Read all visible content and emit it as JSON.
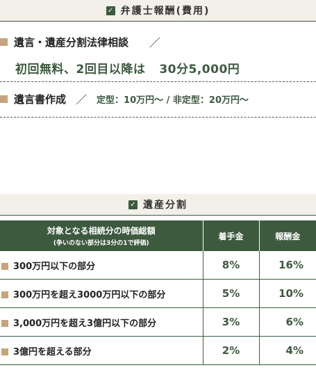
{
  "fee_section": {
    "title": "弁護士報酬(費用)",
    "item1": {
      "label": "遺言・遺産分割法律相談",
      "slash": "／",
      "fee_prefix": "初回無料、2回目以降は",
      "fee_amount": "30分5,000円"
    },
    "item2": {
      "label": "遺言書作成",
      "slash": "／",
      "fee_text": "定型：10万円〜 / 非定型：20万円〜"
    }
  },
  "division_section": {
    "title": "遺産分割",
    "table": {
      "headers": {
        "col1": "対象となる相続分の時価総額",
        "col1_sub": "(争いのない部分は3分の1で評価)",
        "col2": "着手金",
        "col3": "報酬金"
      },
      "rows": [
        {
          "label": "300万円以下の部分",
          "retainer": "8%",
          "reward": "16%"
        },
        {
          "label": "300万円を超え3000万円以下の部分",
          "retainer": "5%",
          "reward": "10%"
        },
        {
          "label": "3,000万円を超え3億円以下の部分",
          "retainer": "3%",
          "reward": "6%"
        },
        {
          "label": "3億円を超える部分",
          "retainer": "2%",
          "reward": "4%"
        }
      ]
    }
  },
  "colors": {
    "accent_green": "#3d5a3f",
    "bullet_tan": "#c5a47e",
    "header_bg": "#f2f0e9"
  },
  "icons": {
    "checkbox": "checkbox-icon",
    "bullet": "square-bullet-icon"
  }
}
